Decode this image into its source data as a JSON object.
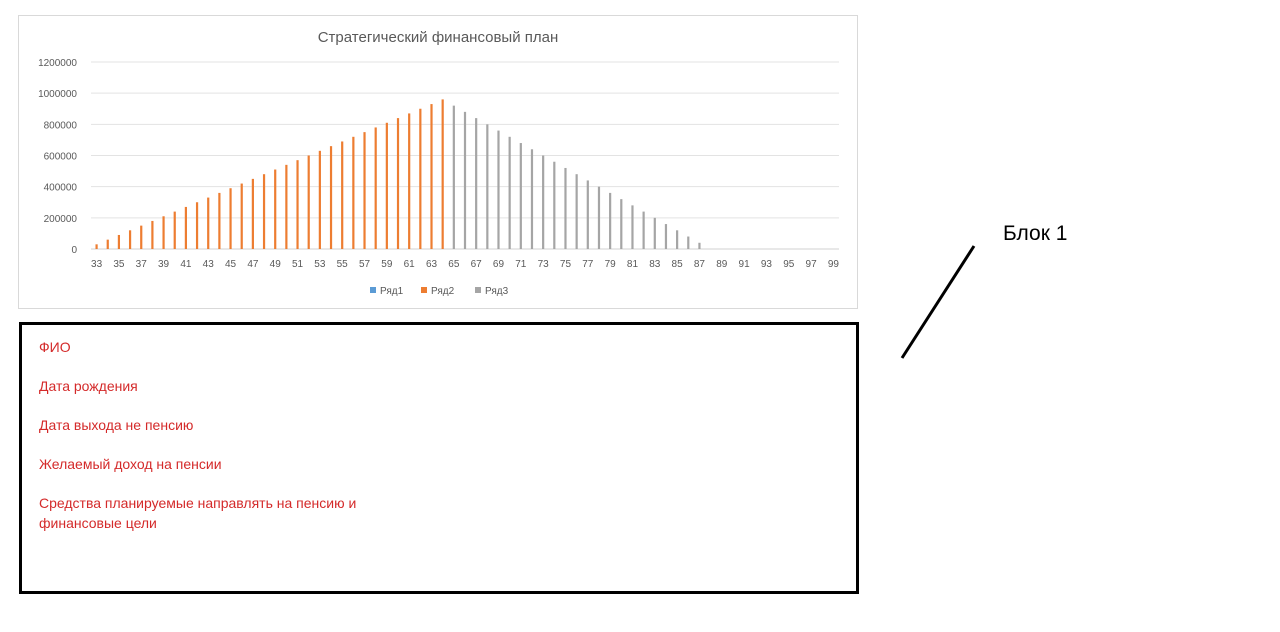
{
  "chart_data": {
    "type": "bar",
    "title": "Стратегический финансовый план",
    "xlabel": "",
    "ylabel": "",
    "ylim": [
      0,
      1200000
    ],
    "y_ticks": [
      "0",
      "200000",
      "400000",
      "600000",
      "800000",
      "1000000",
      "1200000"
    ],
    "grid": true,
    "legend_position": "bottom",
    "categories": [
      33,
      34,
      35,
      36,
      37,
      38,
      39,
      40,
      41,
      42,
      43,
      44,
      45,
      46,
      47,
      48,
      49,
      50,
      51,
      52,
      53,
      54,
      55,
      56,
      57,
      58,
      59,
      60,
      61,
      62,
      63,
      64,
      65,
      66,
      67,
      68,
      69,
      70,
      71,
      72,
      73,
      74,
      75,
      76,
      77,
      78,
      79,
      80,
      81,
      82,
      83,
      84,
      85,
      86,
      87,
      88,
      89,
      90,
      91,
      92,
      93,
      94,
      95,
      96,
      97,
      98,
      99
    ],
    "x_tick_labels": [
      "33",
      "35",
      "37",
      "39",
      "41",
      "43",
      "45",
      "47",
      "49",
      "51",
      "53",
      "55",
      "57",
      "59",
      "61",
      "63",
      "65",
      "67",
      "69",
      "71",
      "73",
      "75",
      "77",
      "79",
      "81",
      "83",
      "85",
      "87",
      "89",
      "91",
      "93",
      "95",
      "97",
      "99"
    ],
    "series": [
      {
        "name": "Ряд1",
        "color": "#5b9bd5",
        "values": [
          0,
          0,
          0,
          0,
          0,
          0,
          0,
          0,
          0,
          0,
          0,
          0,
          0,
          0,
          0,
          0,
          0,
          0,
          0,
          0,
          0,
          0,
          0,
          0,
          0,
          0,
          0,
          0,
          0,
          0,
          0,
          0,
          0,
          0,
          0,
          0,
          0,
          0,
          0,
          0,
          0,
          0,
          0,
          0,
          0,
          0,
          0,
          0,
          0,
          0,
          0,
          0,
          0,
          0,
          0,
          0,
          0,
          0,
          0,
          0,
          0,
          0,
          0,
          0,
          0,
          0,
          0
        ]
      },
      {
        "name": "Ряд2",
        "color": "#ed7d31",
        "values": [
          30000,
          60000,
          90000,
          120000,
          150000,
          180000,
          210000,
          240000,
          270000,
          300000,
          330000,
          360000,
          390000,
          420000,
          450000,
          480000,
          510000,
          540000,
          570000,
          600000,
          630000,
          660000,
          690000,
          720000,
          750000,
          780000,
          810000,
          840000,
          870000,
          900000,
          930000,
          960000,
          0,
          0,
          0,
          0,
          0,
          0,
          0,
          0,
          0,
          0,
          0,
          0,
          0,
          0,
          0,
          0,
          0,
          0,
          0,
          0,
          0,
          0,
          0,
          0,
          0,
          0,
          0,
          0,
          0,
          0,
          0,
          0,
          0,
          0,
          0
        ]
      },
      {
        "name": "Ряд3",
        "color": "#a5a5a5",
        "values": [
          0,
          0,
          0,
          0,
          0,
          0,
          0,
          0,
          0,
          0,
          0,
          0,
          0,
          0,
          0,
          0,
          0,
          0,
          0,
          0,
          0,
          0,
          0,
          0,
          0,
          0,
          0,
          0,
          0,
          0,
          0,
          0,
          920000,
          880000,
          840000,
          800000,
          760000,
          720000,
          680000,
          640000,
          600000,
          560000,
          520000,
          480000,
          440000,
          400000,
          360000,
          320000,
          280000,
          240000,
          200000,
          160000,
          120000,
          80000,
          40000,
          0,
          0,
          0,
          0,
          0,
          0,
          0,
          0,
          0,
          0,
          0,
          0
        ]
      }
    ]
  },
  "info_box": {
    "lines": [
      "ФИО",
      "Дата рождения",
      "Дата выхода не пенсию",
      "Желаемый доход на пенсии",
      "Средства планируемые направлять на пенсию и",
      "финансовые цели"
    ]
  },
  "block_label": "Блок 1"
}
